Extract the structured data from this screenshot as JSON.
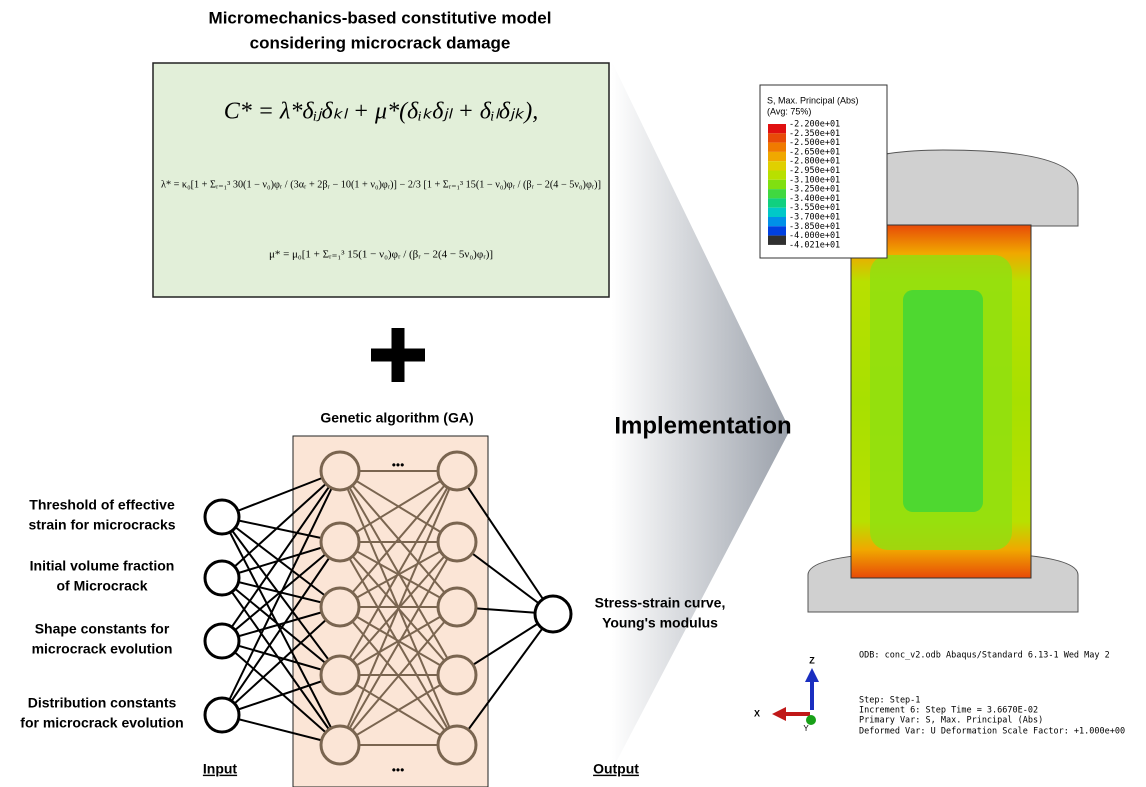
{
  "title": {
    "lines": [
      "Micromechanics-based constitutive model",
      "considering microcrack damage"
    ]
  },
  "equations": [
    "C* = λ*δᵢⱼδₖₗ + μ*(δᵢₖδⱼₗ + δᵢₗδⱼₖ),",
    "λ* = κ₀[1 + Σᵣ₌₁³ 30(1 − ν₀)φᵣ / (3αᵣ + 2βᵣ − 10(1 + ν₀)φᵣ)] − 2/3 [1 + Σᵣ₌₁³ 15(1 − ν₀)φᵣ / (βᵣ − 2(4 − 5ν₀)φᵣ)]",
    "μ* = μ₀[1 + Σᵣ₌₁³ 15(1 − ν₀)φᵣ / (βᵣ − 2(4 − 5ν₀)φᵣ)]"
  ],
  "network": {
    "title": "Genetic algorithm (GA)",
    "dots": "•••",
    "inputs": [
      [
        "Threshold of effective",
        "strain for microcracks"
      ],
      [
        "Initial volume fraction",
        "of Microcrack"
      ],
      [
        "Shape constants for",
        "microcrack evolution"
      ],
      [
        "Distribution constants",
        "for microcrack evolution"
      ]
    ],
    "output": [
      "Stress-strain curve,",
      "Young's modulus"
    ],
    "input_label": "Input",
    "output_label": "Output"
  },
  "implementation": "Implementation",
  "legend": {
    "title": "S, Max. Principal (Abs)",
    "subtitle": "(Avg: 75%)",
    "labels": [
      "-2.200e+01",
      "-2.350e+01",
      "-2.500e+01",
      "-2.650e+01",
      "-2.800e+01",
      "-2.950e+01",
      "-3.100e+01",
      "-3.250e+01",
      "-3.400e+01",
      "-3.550e+01",
      "-3.700e+01",
      "-3.850e+01",
      "-4.000e+01",
      "-4.021e+01"
    ],
    "colors": [
      "#e01010",
      "#e84a08",
      "#f07a00",
      "#f0a800",
      "#e0d000",
      "#b8e000",
      "#80e010",
      "#40d840",
      "#10d080",
      "#00c8c8",
      "#0090e8",
      "#0040e0",
      "#303030"
    ]
  },
  "axes": {
    "z": "Z",
    "x": "X",
    "y": "Y"
  },
  "info": [
    "ODB: conc_v2.odb    Abaqus/Standard 6.13-1    Wed May 2",
    "Step: Step-1",
    "Increment      6: Step Time =    3.6670E-02",
    "Primary Var: S, Max. Principal (Abs)",
    "Deformed Var: U   Deformation Scale Factor: +1.000e+00"
  ]
}
